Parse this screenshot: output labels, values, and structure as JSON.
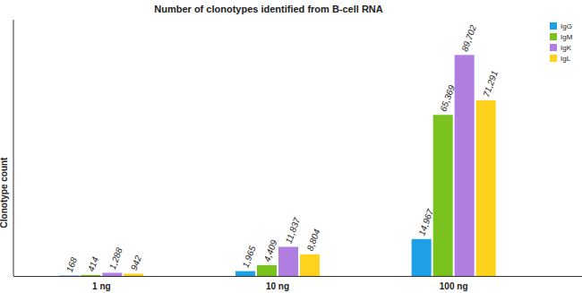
{
  "chart_data": {
    "type": "bar",
    "title": "Number of clonotypes identified from B-cell RNA",
    "y_label": "Clonotype count",
    "categories": [
      "1 ng",
      "10 ng",
      "100 ng"
    ],
    "series": [
      {
        "name": "IgG",
        "color": "#1ea0e6",
        "values": [
          168,
          1965,
          14967
        ],
        "value_labels": [
          "168",
          "1,965",
          "14,967"
        ]
      },
      {
        "name": "IgM",
        "color": "#7ac31e",
        "values": [
          414,
          4409,
          65369
        ],
        "value_labels": [
          "414",
          "4,409",
          "65,369"
        ]
      },
      {
        "name": "IgK",
        "color": "#b07ee0",
        "values": [
          1288,
          11837,
          89702
        ],
        "value_labels": [
          "1,288",
          "11,837",
          "89,702"
        ]
      },
      {
        "name": "IgL",
        "color": "#ffd21e",
        "values": [
          942,
          8804,
          71291
        ],
        "value_labels": [
          "942",
          "8,804",
          "71,291"
        ]
      }
    ],
    "ylim": [
      0,
      104000
    ],
    "data_labels": true,
    "tick_labels": "x",
    "legend": "top-right",
    "grid": false
  }
}
